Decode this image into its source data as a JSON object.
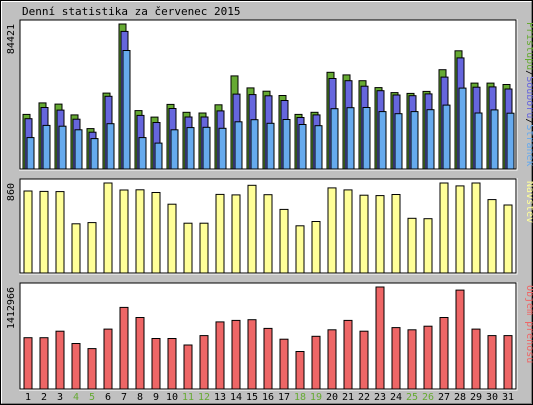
{
  "chart_data": {
    "type": "bar",
    "title": "Denní statistika za červenec 2015",
    "colors": {
      "hits": "#66aa33",
      "files": "#6666dd",
      "pages": "#66aaee",
      "visits": "#ffff99",
      "kbytes": "#ee6666",
      "weekday": "#000000",
      "weekend": "#66aa33"
    },
    "categories": [
      "1",
      "2",
      "3",
      "4",
      "5",
      "6",
      "7",
      "8",
      "9",
      "10",
      "11",
      "12",
      "13",
      "14",
      "15",
      "16",
      "17",
      "18",
      "19",
      "20",
      "21",
      "22",
      "23",
      "24",
      "25",
      "26",
      "27",
      "28",
      "29",
      "30",
      "31"
    ],
    "weekend_days": [
      "4",
      "5",
      "11",
      "12",
      "18",
      "19",
      "25",
      "26"
    ],
    "panels": [
      {
        "max_label": "84421",
        "ylim": [
          0,
          84421
        ],
        "legend": [
          "Přístupů",
          "/",
          "Souborů",
          "/",
          "Stránek"
        ],
        "legend_colors": [
          "#66aa33",
          "#000000",
          "#6666dd",
          "#000000",
          "#66aaee"
        ],
        "series": [
          {
            "name": "Přístupů",
            "values": [
              31800,
              38500,
              37800,
              31500,
              23500,
              44200,
              84421,
              34000,
              30200,
              37600,
              33000,
              32600,
              37400,
              54200,
              47200,
              45300,
              42800,
              31800,
              33000,
              56300,
              54800,
              51400,
              47400,
              44500,
              44000,
              45200,
              57800,
              68800,
              50000,
              50000,
              49200
            ]
          },
          {
            "name": "Souborů",
            "values": [
              29300,
              35800,
              34300,
              29000,
              21400,
              42300,
              80100,
              31200,
              27100,
              35200,
              30300,
              30300,
              33800,
              43600,
              43300,
              42600,
              39900,
              30000,
              31500,
              52700,
              51400,
              48200,
              45600,
              43100,
              42700,
              43700,
              53500,
              64700,
              47600,
              47800,
              46600
            ]
          },
          {
            "name": "Stránek",
            "values": [
              18300,
              25400,
              24900,
              22800,
              17700,
              26400,
              69000,
              18300,
              15100,
              22800,
              24100,
              24300,
              23700,
              27500,
              28700,
              26600,
              28800,
              25900,
              25200,
              35100,
              35700,
              35800,
              33400,
              32200,
              33400,
              34500,
              37200,
              47100,
              32600,
              34400,
              32500
            ]
          }
        ]
      },
      {
        "max_label": "860",
        "ylim": [
          0,
          860
        ],
        "legend": [
          "Návštěv"
        ],
        "legend_colors": [
          "#ffff99"
        ],
        "series": [
          {
            "name": "Návštěv",
            "values": [
              784,
              780,
              778,
              470,
              482,
              862,
              793,
              795,
              769,
              657,
              476,
              476,
              751,
              746,
              838,
              748,
              608,
              451,
              492,
              813,
              794,
              743,
              740,
              750,
              523,
              519,
              862,
              832,
              862,
              701,
              650
            ]
          }
        ]
      },
      {
        "max_label": "1412966",
        "ylim": [
          0,
          1412966
        ],
        "legend": [
          "Objem přenosu"
        ],
        "legend_colors": [
          "#ee6666"
        ],
        "series": [
          {
            "name": "Objem přenosu",
            "values": [
              710000,
              710000,
              800000,
              630000,
              560000,
              830000,
              1130000,
              990000,
              700000,
              700000,
              610000,
              740000,
              930000,
              950000,
              960000,
              840000,
              690000,
              520000,
              730000,
              820000,
              950000,
              800000,
              1420000,
              850000,
              820000,
              870000,
              990000,
              1370000,
              830000,
              740000,
              740000
            ]
          }
        ]
      }
    ]
  }
}
